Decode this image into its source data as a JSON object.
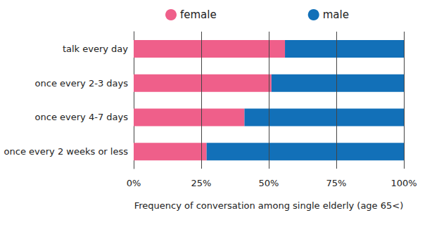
{
  "chart_data": {
    "type": "bar",
    "orientation": "horizontal",
    "stacked": true,
    "x_label": "Frequency of conversation among single elderly (age 65<)",
    "categories": [
      "talk every day",
      "once every 2-3 days",
      "once every 4-7 days",
      "once every 2 weeks or less"
    ],
    "series": [
      {
        "name": "female",
        "color": "#ef5f8a",
        "values": [
          56,
          51,
          41,
          27
        ]
      },
      {
        "name": "male",
        "color": "#1270b8",
        "values": [
          44,
          49,
          59,
          73
        ]
      }
    ],
    "xlim": [
      0,
      100
    ],
    "xticks": [
      {
        "value": 0,
        "label": "0%"
      },
      {
        "value": 25,
        "label": "25%"
      },
      {
        "value": 50,
        "label": "50%"
      },
      {
        "value": 75,
        "label": "75%"
      },
      {
        "value": 100,
        "label": "100%"
      }
    ],
    "grid": true,
    "legend": "top"
  }
}
